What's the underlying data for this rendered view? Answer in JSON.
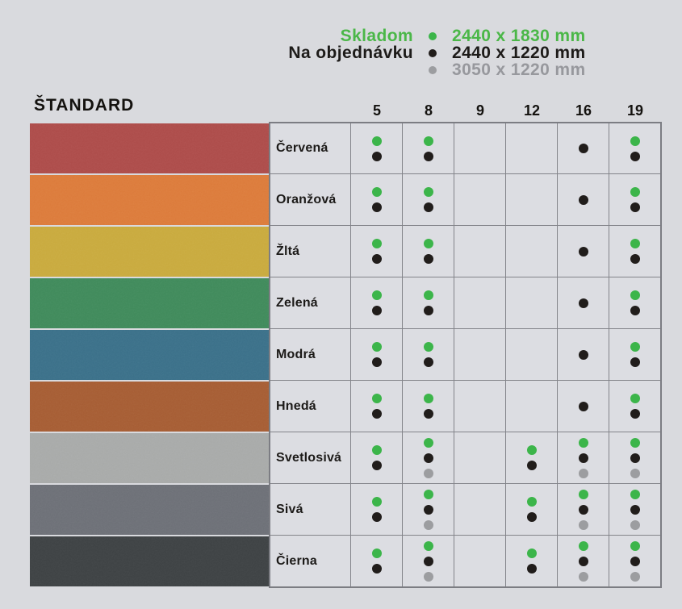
{
  "colors": {
    "page_background": "#d9dade",
    "grid_border": "#83848a",
    "legend_green": "#4bb748",
    "legend_black": "#1d1b19",
    "legend_gray": "#97989d",
    "dot_green": "#3cb54a",
    "dot_black": "#211d1b",
    "dot_gray": "#9c9da0"
  },
  "legend": {
    "rows": [
      {
        "label": "Skladom",
        "size": "2440 x 1830 mm",
        "dot": "green"
      },
      {
        "label": "Na objednávku",
        "size": "2440 x 1220 mm",
        "dot": "black"
      },
      {
        "label": "",
        "size": "3050 x 1220 mm",
        "dot": "gray"
      }
    ]
  },
  "table": {
    "title": "ŠTANDARD",
    "thickness_columns": [
      "5",
      "8",
      "9",
      "12",
      "16",
      "19"
    ],
    "rows": [
      {
        "label": "Červená",
        "swatch_color": "#ad4c4a",
        "dots": [
          [
            "green",
            "black"
          ],
          [
            "green",
            "black"
          ],
          [],
          [],
          [
            "black"
          ],
          [
            "green",
            "black"
          ]
        ]
      },
      {
        "label": "Oranžová",
        "swatch_color": "#dc7b3b",
        "dots": [
          [
            "green",
            "black"
          ],
          [
            "green",
            "black"
          ],
          [],
          [],
          [
            "black"
          ],
          [
            "green",
            "black"
          ]
        ]
      },
      {
        "label": "Žltá",
        "swatch_color": "#c9aa3e",
        "dots": [
          [
            "green",
            "black"
          ],
          [
            "green",
            "black"
          ],
          [],
          [],
          [
            "black"
          ],
          [
            "green",
            "black"
          ]
        ]
      },
      {
        "label": "Zelená",
        "swatch_color": "#408a5b",
        "dots": [
          [
            "green",
            "black"
          ],
          [
            "green",
            "black"
          ],
          [],
          [],
          [
            "black"
          ],
          [
            "green",
            "black"
          ]
        ]
      },
      {
        "label": "Modrá",
        "swatch_color": "#3b7089",
        "dots": [
          [
            "green",
            "black"
          ],
          [
            "green",
            "black"
          ],
          [],
          [],
          [
            "black"
          ],
          [
            "green",
            "black"
          ]
        ]
      },
      {
        "label": "Hnedá",
        "swatch_color": "#a65d34",
        "dots": [
          [
            "green",
            "black"
          ],
          [
            "green",
            "black"
          ],
          [],
          [],
          [
            "black"
          ],
          [
            "green",
            "black"
          ]
        ]
      },
      {
        "label": "Svetlosivá",
        "swatch_color": "#a8aaa9",
        "dots": [
          [
            "green",
            "black"
          ],
          [
            "green",
            "black",
            "gray"
          ],
          [],
          [
            "green",
            "black"
          ],
          [
            "green",
            "black",
            "gray"
          ],
          [
            "green",
            "black",
            "gray"
          ]
        ]
      },
      {
        "label": "Sivá",
        "swatch_color": "#6d7077",
        "dots": [
          [
            "green",
            "black"
          ],
          [
            "green",
            "black",
            "gray"
          ],
          [],
          [
            "green",
            "black"
          ],
          [
            "green",
            "black",
            "gray"
          ],
          [
            "green",
            "black",
            "gray"
          ]
        ]
      },
      {
        "label": "Čierna",
        "swatch_color": "#3e4244",
        "dots": [
          [
            "green",
            "black"
          ],
          [
            "green",
            "black",
            "gray"
          ],
          [],
          [
            "green",
            "black"
          ],
          [
            "green",
            "black",
            "gray"
          ],
          [
            "green",
            "black",
            "gray"
          ]
        ]
      }
    ]
  }
}
